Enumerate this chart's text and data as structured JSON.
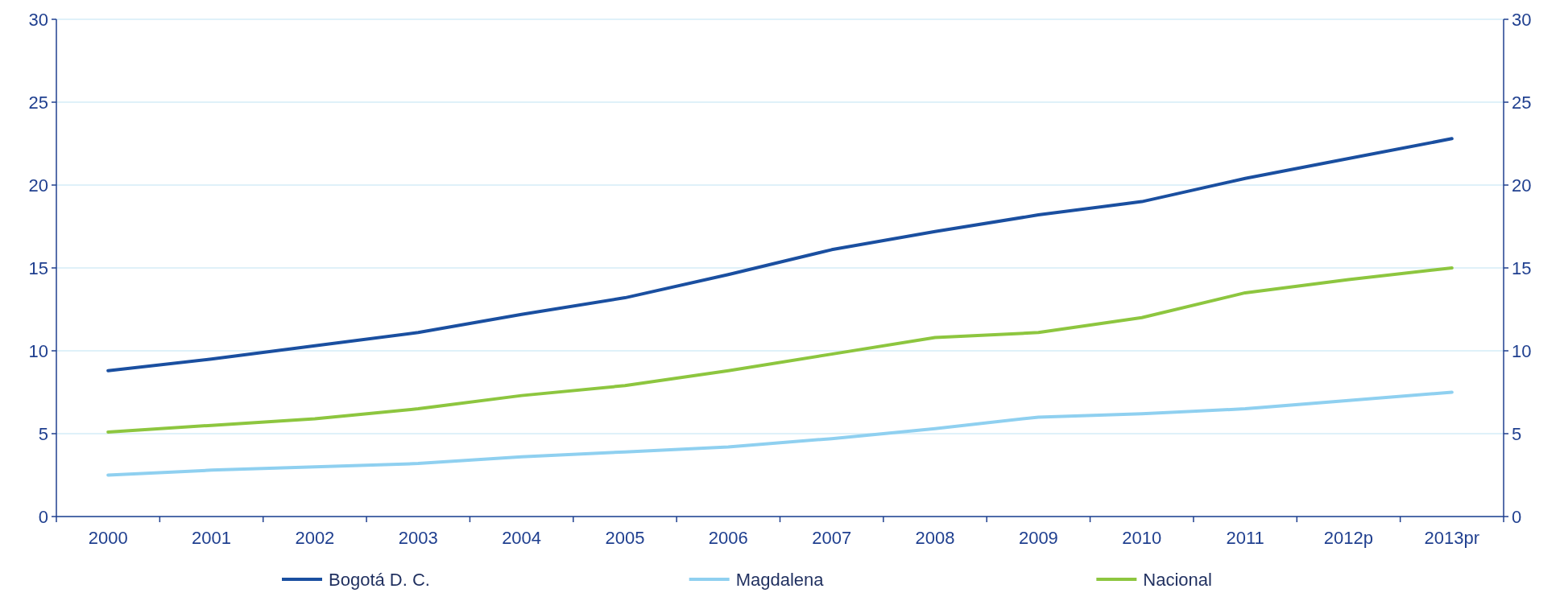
{
  "chart_data": {
    "type": "line",
    "categories": [
      "2000",
      "2001",
      "2002",
      "2003",
      "2004",
      "2005",
      "2006",
      "2007",
      "2008",
      "2009",
      "2010",
      "2011",
      "2012p",
      "2013pr"
    ],
    "series": [
      {
        "name": "Bogotá D. C.",
        "color": "#1a4fa0",
        "values": [
          8.8,
          9.5,
          10.3,
          11.1,
          12.2,
          13.2,
          14.6,
          16.1,
          17.2,
          18.2,
          19.0,
          20.4,
          21.6,
          22.8
        ]
      },
      {
        "name": "Magdalena",
        "color": "#8fd0f0",
        "values": [
          2.5,
          2.8,
          3.0,
          3.2,
          3.6,
          3.9,
          4.2,
          4.7,
          5.3,
          6.0,
          6.2,
          6.5,
          7.0,
          7.5
        ]
      },
      {
        "name": "Nacional",
        "color": "#8dc63f",
        "values": [
          5.1,
          5.5,
          5.9,
          6.5,
          7.3,
          7.9,
          8.8,
          9.8,
          10.8,
          11.1,
          12.0,
          13.5,
          14.3,
          15.0
        ]
      }
    ],
    "ylim": [
      0,
      30
    ],
    "yticks": [
      0,
      5,
      10,
      15,
      20,
      25,
      30
    ],
    "y2lim": [
      0,
      30
    ],
    "y2ticks": [
      0,
      5,
      10,
      15,
      20,
      25,
      30
    ],
    "grid": "y",
    "legend": "bottom",
    "marker": "none",
    "line_style": "solid"
  }
}
